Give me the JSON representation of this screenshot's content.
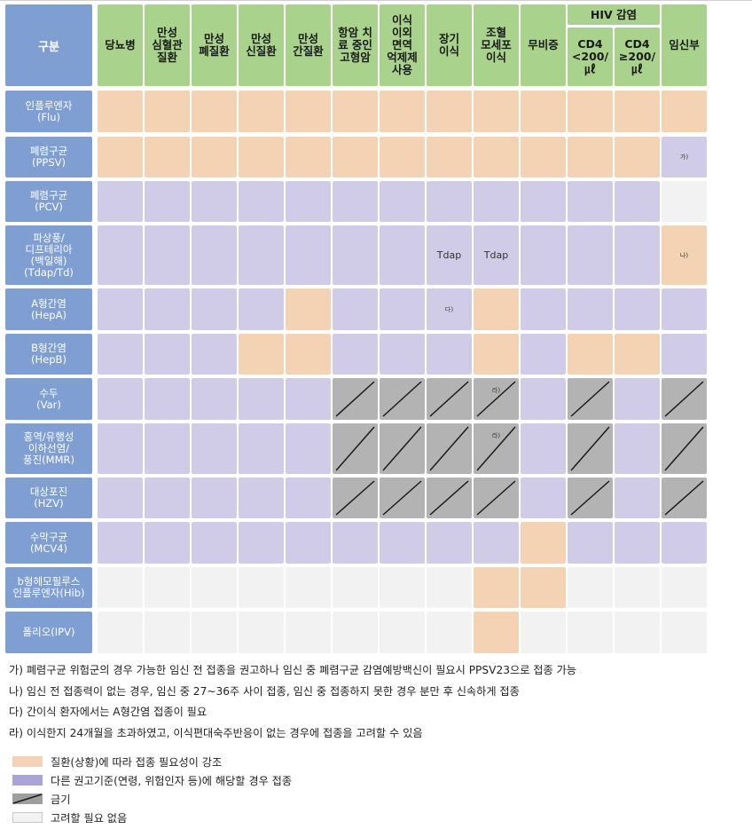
{
  "corner_label": "구분",
  "hiv_group_label": "HIV 감염",
  "columns": [
    {
      "label": "당뇨병"
    },
    {
      "label": "만성\n심혈관\n질환"
    },
    {
      "label": "만성\n폐질환"
    },
    {
      "label": "만성\n신질환"
    },
    {
      "label": "만성\n간질환"
    },
    {
      "label": "항암 치\n료 중인\n고형암"
    },
    {
      "label": "이식\n이외\n면역\n억제제\n사용"
    },
    {
      "label": "장기\n이식"
    },
    {
      "label": "조혈\n모세포\n이식"
    },
    {
      "label": "무비증"
    },
    {
      "label": "CD4\n<200/\n㎕"
    },
    {
      "label": "CD4\n≥200/\n㎕"
    },
    {
      "label": "임신부"
    }
  ],
  "rows": [
    {
      "label": "인플루엔자\n(Flu)",
      "cells": [
        "O",
        "O",
        "O",
        "O",
        "O",
        "O",
        "O",
        "O",
        "O",
        "O",
        "O",
        "O",
        "O"
      ]
    },
    {
      "label": "폐렴구균\n(PPSV)",
      "cells": [
        "O",
        "O",
        "O",
        "O",
        "O",
        "O",
        "O",
        "O",
        "O",
        "O",
        "O",
        "O",
        "P"
      ]
    },
    {
      "label": "폐렴구균\n(PCV)",
      "cells": [
        "P",
        "P",
        "P",
        "P",
        "P",
        "P",
        "P",
        "P",
        "P",
        "P",
        "P",
        "P",
        "W"
      ]
    },
    {
      "label": "파상풍/\n디프테리아\n(백일해)\n(Tdap/Td)",
      "cells": [
        "P",
        "P",
        "P",
        "P",
        "P",
        "P",
        "P",
        "P",
        "P",
        "P",
        "P",
        "P",
        "O"
      ]
    },
    {
      "label": "A형간염\n(HepA)",
      "cells": [
        "P",
        "P",
        "P",
        "P",
        "O",
        "P",
        "P",
        "P",
        "O",
        "P",
        "P",
        "P",
        "P"
      ]
    },
    {
      "label": "B형간염\n(HepB)",
      "cells": [
        "P",
        "P",
        "P",
        "O",
        "O",
        "P",
        "P",
        "P",
        "O",
        "P",
        "O",
        "O",
        "P"
      ]
    },
    {
      "label": "수두\n(Var)",
      "cells": [
        "P",
        "P",
        "P",
        "P",
        "P",
        "G",
        "G",
        "G",
        "G",
        "P",
        "G",
        "P",
        "G"
      ]
    },
    {
      "label": "홍역/유행성\n이하선염/\n풍진(MMR)",
      "cells": [
        "P",
        "P",
        "P",
        "P",
        "P",
        "G",
        "G",
        "G",
        "G",
        "P",
        "G",
        "P",
        "G"
      ]
    },
    {
      "label": "대상포진\n(HZV)",
      "cells": [
        "P",
        "P",
        "P",
        "P",
        "P",
        "G",
        "G",
        "G",
        "G",
        "P",
        "G",
        "P",
        "G"
      ]
    },
    {
      "label": "수막구균\n(MCV4)",
      "cells": [
        "P",
        "P",
        "P",
        "P",
        "P",
        "P",
        "P",
        "P",
        "P",
        "O",
        "P",
        "P",
        "P"
      ]
    },
    {
      "label": "b형헤모필루스\n인플루엔자(Hib)",
      "cells": [
        "W",
        "W",
        "W",
        "W",
        "W",
        "W",
        "W",
        "W",
        "O",
        "O",
        "W",
        "W",
        "W"
      ]
    },
    {
      "label": "폴리오(IPV)",
      "cells": [
        "W",
        "W",
        "W",
        "W",
        "W",
        "W",
        "W",
        "W",
        "O",
        "W",
        "W",
        "W",
        "W"
      ]
    }
  ],
  "cell_texts": {
    "tdap_organ": "Tdap",
    "tdap_hsct": "Tdap"
  },
  "cell_notes": {
    "ppsv_pregnant": "가)",
    "tdap_pregnant": "나)",
    "hepa_organ": "다)",
    "var_hsct": "라)",
    "mmr_hsct": "라)"
  },
  "notes": [
    "가) 폐렴구균 위험군의 경우 가능한 임신 전 접종을 권고하나 임신 중 폐렴구균 감염예방백신이 필요시 PPSV23으로 접종 가능",
    "나) 임신 전 접종력이 없는 경우, 임신 중 27~36주 사이 접종, 임신 중 접종하지 못한 경우 분만 후 신속하게 접종",
    "다) 간이식 환자에서는 A형간염 접종이 필요",
    "라) 이식한지 24개월을 초과하였고, 이식편대숙주반응이 없는 경우에 접종을 고려할 수 있음"
  ],
  "legend": [
    {
      "key": "O",
      "label": "질환(상황)에 따라 접종 필요성이 강조"
    },
    {
      "key": "P",
      "label": "다른 권고기준(연령, 위험인자 등)에 해당할 경우 접종"
    },
    {
      "key": "G",
      "label": "금기"
    },
    {
      "key": "W",
      "label": "고려할 필요 없음"
    }
  ],
  "colors": {
    "emphasized": "#f3d3b3",
    "other_criteria": "#d0cce8",
    "contraindicated": "#b3b3b3",
    "not_needed": "#f2f2f2",
    "header_green": "#a9d38d",
    "row_header_blue": "#7f9fd3"
  }
}
